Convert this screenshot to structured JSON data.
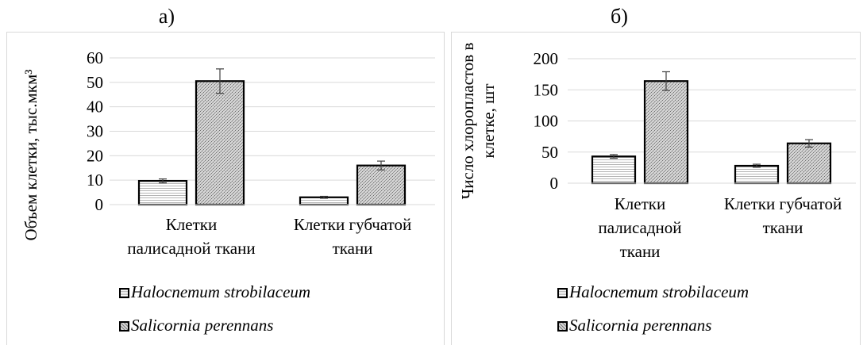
{
  "panels": [
    {
      "label": "а)",
      "legend": [
        "Halocnemum strobilaceum",
        "Salicornia perennans"
      ]
    },
    {
      "label": "б)",
      "legend": [
        "Halocnemum strobilaceum",
        "Salicornia perennans"
      ]
    }
  ],
  "chart_data": [
    {
      "type": "bar",
      "title": "а)",
      "ylabel": "Объем клетки, тыс.мкм³",
      "xlabel": "",
      "categories": [
        "Клетки палисадной ткани",
        "Клетки губчатой ткани"
      ],
      "category_lines": [
        [
          "Клетки",
          "палисадной ткани"
        ],
        [
          "Клетки губчатой",
          "ткани"
        ]
      ],
      "series": [
        {
          "name": "Halocnemum strobilaceum",
          "values": [
            9.7,
            3.0
          ],
          "errors": [
            0.8,
            0.4
          ]
        },
        {
          "name": "Salicornia perennans",
          "values": [
            50.5,
            16.0
          ],
          "errors": [
            5.0,
            1.8
          ]
        }
      ],
      "ylim": [
        0,
        60
      ],
      "yticks": [
        0,
        10,
        20,
        30,
        40,
        50,
        60
      ],
      "grid": true,
      "legend_position": "bottom-left"
    },
    {
      "type": "bar",
      "title": "б)",
      "ylabel": "Число хлоропластов в клетке, шт",
      "ylabel_lines": [
        "Число хлоропластов в",
        "клетке, шт"
      ],
      "xlabel": "",
      "categories": [
        "Клетки палисадной ткани",
        "Клетки губчатой ткани"
      ],
      "category_lines": [
        [
          "Клетки",
          "палисадной",
          "ткани"
        ],
        [
          "Клетки губчатой",
          "ткани"
        ]
      ],
      "series": [
        {
          "name": "Halocnemum strobilaceum",
          "values": [
            43,
            28
          ],
          "errors": [
            3,
            2.5
          ]
        },
        {
          "name": "Salicornia perennans",
          "values": [
            164,
            64
          ],
          "errors": [
            15,
            6
          ]
        }
      ],
      "ylim": [
        0,
        200
      ],
      "yticks": [
        0,
        50,
        100,
        150,
        200
      ],
      "grid": true,
      "legend_position": "bottom-left"
    }
  ]
}
